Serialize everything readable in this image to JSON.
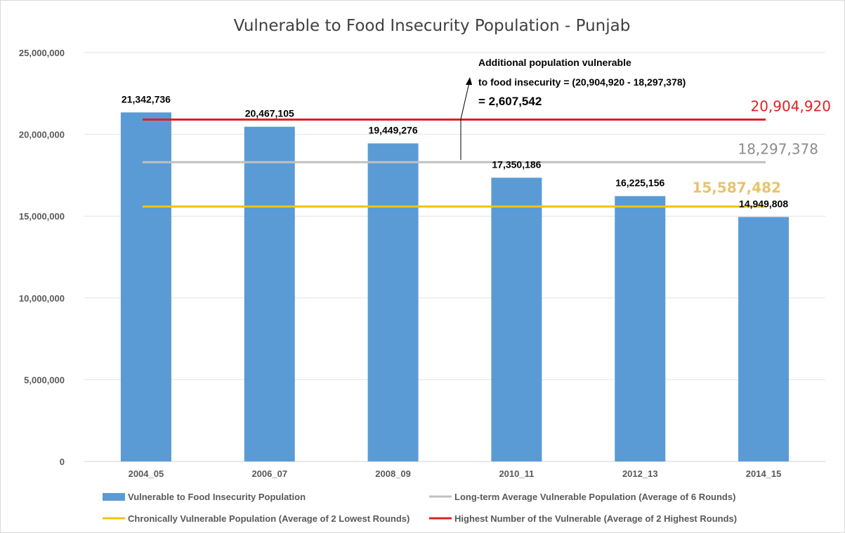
{
  "chart_data": {
    "type": "bar",
    "title": "Vulnerable to Food Insecurity Population - Punjab",
    "categories": [
      "2004_05",
      "2006_07",
      "2008_09",
      "2010_11",
      "2012_13",
      "2014_15"
    ],
    "series": [
      {
        "name": "Vulnerable to Food Insecurity Population",
        "values": [
          21342736,
          20467105,
          19449276,
          17350186,
          16225156,
          14949808
        ],
        "labels": [
          "21,342,736",
          "20,467,105",
          "19,449,276",
          "17,350,186",
          "16,225,156",
          "14,949,808"
        ],
        "color": "#5b9bd5"
      }
    ],
    "reference_lines": [
      {
        "name": "Highest Number of the Vulnerable (Average of 2 Highest Rounds)",
        "value": 20904920,
        "label": "20,904,920",
        "color": "#e02020",
        "label_color": "#e02020"
      },
      {
        "name": "Long-term Average Vulnerable Population (Average of 6 Rounds)",
        "value": 18297378,
        "label": "18,297,378",
        "color": "#c0c0c0",
        "label_color": "#8c8c8c"
      },
      {
        "name": "Chronically Vulnerable Population (Average of 2 Lowest Rounds)",
        "value": 15587482,
        "label": "15,587,482",
        "color": "#f2c500",
        "label_color": "#e8c36a"
      }
    ],
    "ylim": [
      0,
      25000000
    ],
    "yticks": [
      0,
      5000000,
      10000000,
      15000000,
      20000000,
      25000000
    ],
    "ytick_labels": [
      "0",
      "5,000,000",
      "10,000,000",
      "15,000,000",
      "20,000,000",
      "25,000,000"
    ],
    "grid": true,
    "legend_position": "bottom",
    "annotation": {
      "line1": "Additional population vulnerable",
      "line2": "to food insecurity = (20,904,920 - 18,297,378)",
      "line3": "= 2,607,542"
    }
  },
  "legend": {
    "items": [
      {
        "label": "Vulnerable to Food Insecurity Population",
        "color": "#5b9bd5",
        "kind": "bar"
      },
      {
        "label": "Long-term Average Vulnerable Population (Average of 6 Rounds)",
        "color": "#c0c0c0",
        "kind": "line"
      },
      {
        "label": "Chronically Vulnerable Population (Average of 2 Lowest Rounds)",
        "color": "#f2c500",
        "kind": "line"
      },
      {
        "label": "Highest Number of the Vulnerable (Average of 2 Highest Rounds)",
        "color": "#e02020",
        "kind": "line"
      }
    ]
  }
}
